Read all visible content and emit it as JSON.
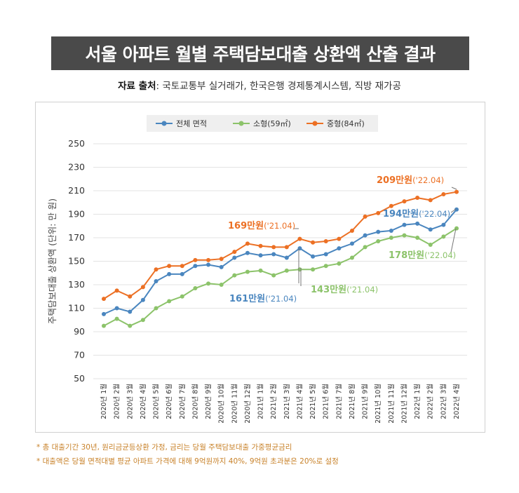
{
  "title": "서울 아파트 월별 주택담보대출 상환액 산출 결과",
  "source": {
    "label": "자료 출처",
    "text": ": 국토교통부 실거래가, 한국은행 경제통계시스템, 직방 재가공"
  },
  "chart_data": {
    "type": "line",
    "ylabel": "주택담보대출 상환액 (단위: 만 원)",
    "ylim": [
      50,
      250
    ],
    "yticks": [
      50,
      70,
      90,
      110,
      130,
      150,
      170,
      190,
      210,
      230,
      250
    ],
    "grid": true,
    "legend_position": "top",
    "categories": [
      "2020년 1월",
      "2020년 2월",
      "2020년 3월",
      "2020년 4월",
      "2020년 5월",
      "2020년 6월",
      "2020년 7월",
      "2020년 8월",
      "2020년 9월",
      "2020년 10월",
      "2020년 11월",
      "2020년 12월",
      "2021년 1월",
      "2021년 2월",
      "2021년 3월",
      "2021년 4월",
      "2021년 5월",
      "2021년 6월",
      "2021년 7월",
      "2021년 8월",
      "2021년 9월",
      "2021년 10월",
      "2021년 11월",
      "2021년 12월",
      "2022년 1월",
      "2022년 2월",
      "2022년 3월",
      "2022년 4월"
    ],
    "series": [
      {
        "name": "전체 면적",
        "color": "#4a86bf",
        "values": [
          105,
          110,
          107,
          117,
          133,
          139,
          139,
          146,
          147,
          145,
          153,
          157,
          155,
          156,
          153,
          161,
          154,
          156,
          161,
          165,
          172,
          175,
          176,
          181,
          182,
          177,
          181,
          194
        ]
      },
      {
        "name": "소형(59㎡)",
        "color": "#8cc36a",
        "values": [
          95,
          101,
          95,
          100,
          110,
          116,
          120,
          127,
          131,
          130,
          138,
          141,
          142,
          138,
          142,
          143,
          143,
          146,
          148,
          153,
          162,
          167,
          170,
          172,
          170,
          164,
          171,
          178
        ]
      },
      {
        "name": "중형(84㎡)",
        "color": "#ec7024",
        "values": [
          118,
          125,
          120,
          128,
          143,
          146,
          146,
          151,
          151,
          152,
          158,
          165,
          163,
          162,
          162,
          169,
          166,
          167,
          169,
          176,
          188,
          191,
          197,
          201,
          204,
          202,
          207,
          209
        ]
      }
    ],
    "annotations": [
      {
        "value_label": "209만원",
        "date_label": "('22.04)",
        "color": "#ec7024"
      },
      {
        "value_label": "194만원",
        "date_label": "('22.04)",
        "color": "#4a86bf"
      },
      {
        "value_label": "178만원",
        "date_label": "('22.04)",
        "color": "#8cc36a"
      },
      {
        "value_label": "169만원",
        "date_label": "('21.04)",
        "color": "#ec7024"
      },
      {
        "value_label": "161만원",
        "date_label": "('21.04)",
        "color": "#4a86bf"
      },
      {
        "value_label": "143만원",
        "date_label": "('21.04)",
        "color": "#8cc36a"
      }
    ]
  },
  "notes": [
    "* 총 대출기간 30년, 원리금균등상환 가정, 금리는 당월 주택담보대출 가중평균금리",
    "* 대출액은 당월 면적대별 평균 아파트 가격에 대해 9억원까지 40%, 9억원 초과분은 20%로 설정"
  ]
}
